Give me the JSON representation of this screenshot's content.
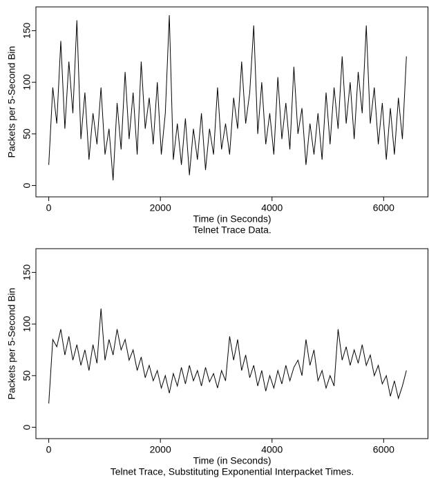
{
  "chart_data": [
    {
      "type": "line",
      "caption": "Telnet Trace Data.",
      "x_label": "Time (in Seconds)",
      "y_label": "Packets per 5-Second Bin",
      "x": [
        0,
        72,
        144,
        216,
        288,
        360,
        432,
        504,
        576,
        648,
        720,
        792,
        864,
        936,
        1008,
        1080,
        1152,
        1224,
        1296,
        1368,
        1440,
        1512,
        1584,
        1656,
        1728,
        1800,
        1872,
        1944,
        2016,
        2088,
        2160,
        2232,
        2304,
        2376,
        2448,
        2520,
        2592,
        2664,
        2736,
        2808,
        2880,
        2952,
        3024,
        3096,
        3168,
        3240,
        3312,
        3384,
        3456,
        3528,
        3600,
        3672,
        3744,
        3816,
        3888,
        3960,
        4032,
        4104,
        4176,
        4248,
        4320,
        4392,
        4464,
        4536,
        4608,
        4680,
        4752,
        4824,
        4896,
        4968,
        5040,
        5112,
        5184,
        5256,
        5328,
        5400,
        5472,
        5544,
        5616,
        5688,
        5760,
        5832,
        5904,
        5976,
        6048,
        6120,
        6192,
        6264,
        6336,
        6408
      ],
      "series": [
        {
          "color": "#000000",
          "values": [
            20,
            95,
            60,
            140,
            55,
            120,
            70,
            160,
            45,
            90,
            25,
            70,
            40,
            95,
            30,
            55,
            5,
            80,
            35,
            110,
            45,
            90,
            30,
            120,
            55,
            85,
            40,
            100,
            30,
            70,
            165,
            25,
            60,
            20,
            65,
            10,
            55,
            25,
            70,
            15,
            55,
            30,
            95,
            35,
            60,
            30,
            85,
            55,
            120,
            60,
            90,
            155,
            50,
            100,
            40,
            70,
            30,
            105,
            45,
            80,
            35,
            115,
            50,
            75,
            20,
            60,
            30,
            70,
            25,
            90,
            40,
            95,
            55,
            125,
            60,
            100,
            45,
            110,
            70,
            155,
            60,
            95,
            40,
            80,
            25,
            75,
            30,
            85,
            45,
            125
          ]
        }
      ],
      "xlim": [
        -230,
        6800
      ],
      "ylim": [
        -11,
        173
      ],
      "xticks": [
        0,
        2000,
        4000,
        6000
      ],
      "yticks": [
        0,
        50,
        100,
        150
      ]
    },
    {
      "type": "line",
      "caption": "Telnet Trace, Substituting Exponential Interpacket Times.",
      "x_label": "Time (in Seconds)",
      "y_label": "Packets per 5-Second Bin",
      "x": [
        0,
        72,
        144,
        216,
        288,
        360,
        432,
        504,
        576,
        648,
        720,
        792,
        864,
        936,
        1008,
        1080,
        1152,
        1224,
        1296,
        1368,
        1440,
        1512,
        1584,
        1656,
        1728,
        1800,
        1872,
        1944,
        2016,
        2088,
        2160,
        2232,
        2304,
        2376,
        2448,
        2520,
        2592,
        2664,
        2736,
        2808,
        2880,
        2952,
        3024,
        3096,
        3168,
        3240,
        3312,
        3384,
        3456,
        3528,
        3600,
        3672,
        3744,
        3816,
        3888,
        3960,
        4032,
        4104,
        4176,
        4248,
        4320,
        4392,
        4464,
        4536,
        4608,
        4680,
        4752,
        4824,
        4896,
        4968,
        5040,
        5112,
        5184,
        5256,
        5328,
        5400,
        5472,
        5544,
        5616,
        5688,
        5760,
        5832,
        5904,
        5976,
        6048,
        6120,
        6192,
        6264,
        6336,
        6408
      ],
      "series": [
        {
          "color": "#000000",
          "values": [
            23,
            85,
            78,
            95,
            70,
            88,
            65,
            80,
            60,
            75,
            55,
            80,
            62,
            115,
            65,
            85,
            70,
            95,
            75,
            85,
            65,
            75,
            55,
            68,
            48,
            60,
            45,
            55,
            38,
            50,
            33,
            52,
            40,
            58,
            42,
            60,
            45,
            55,
            40,
            58,
            44,
            52,
            38,
            55,
            45,
            88,
            65,
            85,
            55,
            70,
            48,
            60,
            40,
            55,
            35,
            50,
            38,
            55,
            42,
            60,
            45,
            58,
            65,
            50,
            85,
            60,
            75,
            45,
            55,
            38,
            50,
            40,
            95,
            65,
            78,
            60,
            75,
            62,
            80,
            60,
            70,
            50,
            60,
            42,
            50,
            30,
            45,
            28,
            40,
            55
          ]
        }
      ],
      "xlim": [
        -230,
        6800
      ],
      "ylim": [
        -11,
        173
      ],
      "xticks": [
        0,
        2000,
        4000,
        6000
      ],
      "yticks": [
        0,
        50,
        100,
        150
      ]
    }
  ]
}
